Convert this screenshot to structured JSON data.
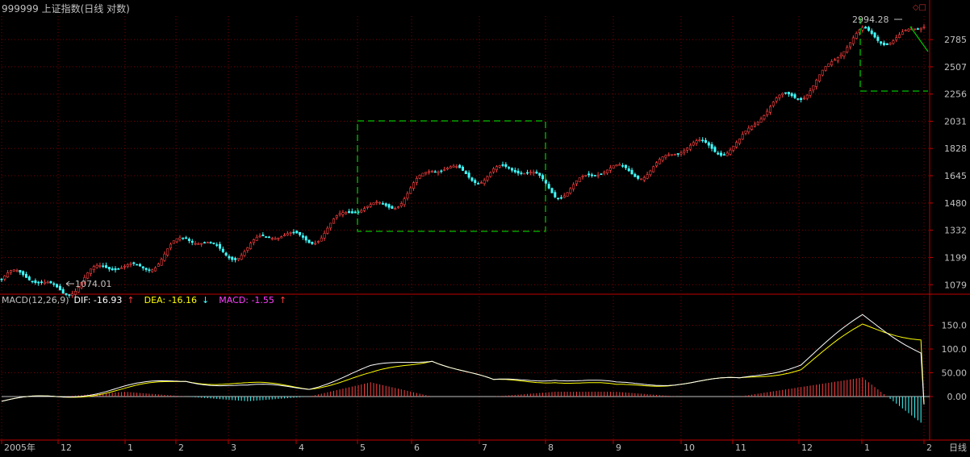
{
  "title": "999999 上证指数(日线 对数)",
  "price_panel": {
    "y_ticks": [
      1079,
      1199,
      1332,
      1480,
      1645,
      1828,
      2031,
      2256,
      2507,
      2785
    ],
    "high_label": "2994.28",
    "low_label": "1074.01"
  },
  "macd": {
    "label": "MACD(12,26,9)",
    "dif_label": "DIF: -16.93",
    "dea_label": "DEA: -16.16",
    "macd_label": "MACD: -1.55",
    "y_ticks": [
      "150.0",
      "100.0",
      "50.00",
      "0.00"
    ]
  },
  "x_axis": {
    "labels": [
      "2005年",
      "12",
      "1",
      "2",
      "3",
      "4",
      "5",
      "6",
      "7",
      "8",
      "9",
      "10",
      "11",
      "12",
      "1",
      "2"
    ],
    "period_label": "日线"
  },
  "colors": {
    "up": "#ff4040",
    "down": "#40ffff",
    "grid": "#800000",
    "axis": "#c00000",
    "box": "#00c000",
    "dif": "#ffffff",
    "dea": "#ffff00"
  },
  "chart_data": {
    "type": "candlestick",
    "title": "999999 上证指数(日线 对数)",
    "y_scale": "log",
    "ylim": [
      1050,
      3050
    ],
    "months": [
      "2005-11",
      "2005-12",
      "2006-01",
      "2006-02",
      "2006-03",
      "2006-04",
      "2006-05",
      "2006-06",
      "2006-07",
      "2006-08",
      "2006-09",
      "2006-10",
      "2006-11",
      "2006-12",
      "2007-01",
      "2007-02"
    ],
    "price_trend": [
      1100,
      1079,
      1150,
      1260,
      1245,
      1320,
      1440,
      1650,
      1690,
      1580,
      1660,
      1780,
      1900,
      2300,
      2800,
      2930
    ],
    "annotations": [
      {
        "label": "2994.28",
        "kind": "high"
      },
      {
        "label": "1074.01",
        "kind": "low"
      }
    ],
    "macd": {
      "params": "12,26,9",
      "DIF": -16.93,
      "DEA": -16.16,
      "MACD": -1.55,
      "dif_trend": [
        -10,
        0,
        20,
        35,
        20,
        20,
        60,
        80,
        30,
        40,
        25,
        30,
        35,
        70,
        170,
        90
      ],
      "dea_trend": [
        -10,
        0,
        15,
        35,
        25,
        20,
        45,
        80,
        30,
        35,
        20,
        30,
        35,
        60,
        150,
        120
      ],
      "ylim": [
        -90,
        190
      ]
    }
  }
}
